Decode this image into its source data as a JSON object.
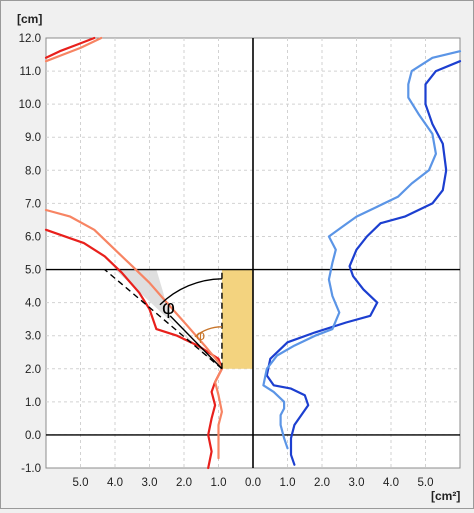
{
  "chart_data": {
    "type": "line",
    "y_unit": "[cm]",
    "x_unit": "[cm²]",
    "ylim": [
      -1.0,
      12.0
    ],
    "xlim": [
      6.0,
      -6.0
    ],
    "y_ticks": [
      "-1.0",
      "0.0",
      "1.0",
      "2.0",
      "3.0",
      "4.0",
      "5.0",
      "6.0",
      "7.0",
      "8.0",
      "9.0",
      "10.0",
      "11.0",
      "12.0"
    ],
    "x_ticks": [
      {
        "x": 5.0,
        "label": "5.0"
      },
      {
        "x": 4.0,
        "label": "4.0"
      },
      {
        "x": 3.0,
        "label": "3.0"
      },
      {
        "x": 2.0,
        "label": "2.0"
      },
      {
        "x": 1.0,
        "label": "1.0"
      },
      {
        "x": 0.0,
        "label": "0.0"
      },
      {
        "x": -1.0,
        "label": "1.0"
      },
      {
        "x": -2.0,
        "label": "2.0"
      },
      {
        "x": -3.0,
        "label": "3.0"
      },
      {
        "x": -4.0,
        "label": "4.0"
      },
      {
        "x": -5.0,
        "label": "5.0"
      }
    ],
    "grid": true,
    "reference_lines": {
      "horizontal": [
        5.0,
        0.0
      ],
      "vertical": [
        0.0
      ]
    },
    "highlight_rect": {
      "x": [
        0.0,
        0.9
      ],
      "y": [
        2.0,
        5.0
      ],
      "color": "#f3d37f"
    },
    "wedge": {
      "apex": [
        0.9,
        2.0
      ],
      "color": "#dcdcdc"
    },
    "angle_labels": [
      "φ",
      "φ"
    ],
    "colors": {
      "red": "#e8201c",
      "salmon": "#f78463",
      "dark_blue": "#1c3fd0",
      "light_blue": "#5b95e6",
      "angle_brown": "#c8752a"
    },
    "series": [
      {
        "color": "red",
        "points": [
          [
            1.3,
            -1.0
          ],
          [
            1.2,
            -0.5
          ],
          [
            1.3,
            0.0
          ],
          [
            1.2,
            0.5
          ],
          [
            1.1,
            0.9
          ],
          [
            1.2,
            1.3
          ],
          [
            1.1,
            1.6
          ],
          [
            1.0,
            1.8
          ],
          [
            0.9,
            2.0
          ],
          [
            1.0,
            2.3
          ],
          [
            1.6,
            2.7
          ],
          [
            2.2,
            3.0
          ],
          [
            2.8,
            3.2
          ],
          [
            3.0,
            3.8
          ],
          [
            3.3,
            4.3
          ],
          [
            3.8,
            4.9
          ],
          [
            4.3,
            5.4
          ],
          [
            4.9,
            5.8
          ],
          [
            6.0,
            6.2
          ]
        ]
      },
      {
        "color": "salmon",
        "points": [
          [
            1.0,
            -0.7
          ],
          [
            1.0,
            -0.2
          ],
          [
            1.0,
            0.3
          ],
          [
            0.9,
            0.7
          ],
          [
            1.0,
            1.2
          ],
          [
            1.1,
            1.6
          ],
          [
            0.9,
            2.0
          ],
          [
            1.0,
            2.2
          ],
          [
            1.4,
            2.7
          ],
          [
            1.9,
            3.3
          ],
          [
            2.5,
            4.0
          ],
          [
            3.0,
            4.6
          ],
          [
            3.5,
            5.1
          ],
          [
            4.0,
            5.6
          ],
          [
            4.6,
            6.2
          ],
          [
            5.3,
            6.6
          ],
          [
            6.0,
            6.8
          ]
        ]
      },
      {
        "color": "red",
        "points": [
          [
            6.0,
            11.4
          ],
          [
            5.6,
            11.6
          ],
          [
            5.1,
            11.8
          ],
          [
            4.6,
            12.0
          ]
        ]
      },
      {
        "color": "salmon",
        "points": [
          [
            6.0,
            11.3
          ],
          [
            5.5,
            11.5
          ],
          [
            5.0,
            11.7
          ],
          [
            4.4,
            12.0
          ]
        ]
      },
      {
        "color": "dark_blue",
        "points": [
          [
            -1.2,
            -0.9
          ],
          [
            -1.1,
            -0.6
          ],
          [
            -1.1,
            -0.1
          ],
          [
            -1.2,
            0.3
          ],
          [
            -1.4,
            0.6
          ],
          [
            -1.6,
            0.9
          ],
          [
            -1.5,
            1.2
          ],
          [
            -1.1,
            1.4
          ],
          [
            -0.6,
            1.5
          ],
          [
            -0.4,
            1.8
          ],
          [
            -0.5,
            2.3
          ],
          [
            -1.0,
            2.8
          ],
          [
            -1.8,
            3.1
          ],
          [
            -2.7,
            3.4
          ],
          [
            -3.4,
            3.6
          ],
          [
            -3.6,
            4.0
          ],
          [
            -3.2,
            4.4
          ],
          [
            -2.9,
            4.8
          ],
          [
            -2.8,
            5.1
          ],
          [
            -3.0,
            5.6
          ],
          [
            -3.3,
            6.0
          ],
          [
            -3.7,
            6.4
          ],
          [
            -4.4,
            6.6
          ],
          [
            -5.2,
            7.0
          ],
          [
            -5.5,
            7.4
          ],
          [
            -5.6,
            8.0
          ],
          [
            -5.5,
            8.8
          ],
          [
            -5.2,
            9.4
          ],
          [
            -5.0,
            10.0
          ],
          [
            -5.0,
            10.6
          ],
          [
            -5.3,
            11.0
          ],
          [
            -6.0,
            11.3
          ]
        ]
      },
      {
        "color": "light_blue",
        "points": [
          [
            -1.0,
            -0.4
          ],
          [
            -0.9,
            -0.1
          ],
          [
            -0.8,
            0.3
          ],
          [
            -0.8,
            0.6
          ],
          [
            -0.9,
            0.8
          ],
          [
            -0.9,
            1.0
          ],
          [
            -0.6,
            1.3
          ],
          [
            -0.3,
            1.5
          ],
          [
            -0.4,
            2.0
          ],
          [
            -0.7,
            2.4
          ],
          [
            -1.2,
            2.7
          ],
          [
            -1.8,
            3.0
          ],
          [
            -2.3,
            3.2
          ],
          [
            -2.5,
            3.7
          ],
          [
            -2.3,
            4.2
          ],
          [
            -2.2,
            4.7
          ],
          [
            -2.3,
            5.2
          ],
          [
            -2.4,
            5.6
          ],
          [
            -2.2,
            6.0
          ],
          [
            -2.6,
            6.3
          ],
          [
            -3.0,
            6.6
          ],
          [
            -3.6,
            6.9
          ],
          [
            -4.2,
            7.2
          ],
          [
            -4.6,
            7.6
          ],
          [
            -5.1,
            8.0
          ],
          [
            -5.3,
            8.5
          ],
          [
            -5.2,
            9.1
          ],
          [
            -4.8,
            9.7
          ],
          [
            -4.5,
            10.2
          ],
          [
            -4.5,
            10.6
          ],
          [
            -4.6,
            11.0
          ],
          [
            -5.2,
            11.4
          ],
          [
            -6.0,
            11.6
          ]
        ]
      }
    ]
  }
}
